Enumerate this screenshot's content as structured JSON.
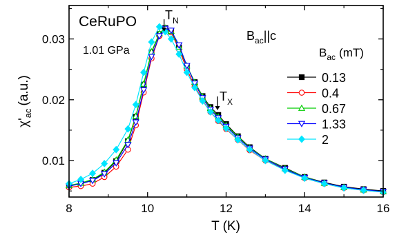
{
  "chart_data": {
    "type": "line",
    "xlabel": "T (K)",
    "ylabel": "χ'ac (a.u.)",
    "ylabel_main": "χ'",
    "ylabel_sub": "ac",
    "ylabel_unit": "(a.u.)",
    "xlim": [
      8,
      16
    ],
    "ylim": [
      0.004,
      0.0355
    ],
    "xticks": [
      8,
      10,
      12,
      14,
      16
    ],
    "yticks": [
      0.01,
      0.02,
      0.03
    ],
    "ytick_labels": [
      "0.01",
      "0.02",
      "0.03"
    ],
    "grid": false,
    "legend_placement": "right",
    "legend_title_main": "B",
    "legend_title_sub": "ac",
    "legend_title_unit": "(mT)",
    "legend_title": "Bac (mT)",
    "annotations": {
      "sample": "CeRuPO",
      "pressure": "1.01 GPa",
      "field_dir_main": "B",
      "field_dir_sub": "ac",
      "field_dir_rest": "||c",
      "tn_main": "T",
      "tn_sub": "N",
      "tx_main": "T",
      "tx_sub": "X",
      "tn_x": 10.42,
      "tx_x": 11.78
    },
    "series": [
      {
        "name": "0.13",
        "color": "#000000",
        "marker": "square-filled",
        "x": [
          8.0,
          8.3,
          8.6,
          8.9,
          9.2,
          9.5,
          9.7,
          9.9,
          10.1,
          10.3,
          10.45,
          10.6,
          10.8,
          11.0,
          11.2,
          11.4,
          11.6,
          11.8,
          12.0,
          12.3,
          12.6,
          13.0,
          13.5,
          14.0,
          14.5,
          15.0,
          15.5,
          16.0
        ],
        "y": [
          0.0058,
          0.0062,
          0.0068,
          0.008,
          0.0099,
          0.0132,
          0.0172,
          0.0225,
          0.0278,
          0.0308,
          0.0318,
          0.0312,
          0.0286,
          0.0255,
          0.0229,
          0.0206,
          0.0188,
          0.0175,
          0.016,
          0.014,
          0.0122,
          0.0103,
          0.0088,
          0.0073,
          0.0064,
          0.0057,
          0.0053,
          0.005
        ]
      },
      {
        "name": "0.4",
        "color": "#ff0000",
        "marker": "circle-open",
        "x": [
          8.0,
          8.3,
          8.6,
          8.9,
          9.2,
          9.5,
          9.7,
          9.9,
          10.1,
          10.3,
          10.45,
          10.6,
          10.8,
          11.0,
          11.2,
          11.4,
          11.6,
          11.8,
          12.0,
          12.3,
          12.6,
          13.0,
          13.5,
          14.0,
          14.5,
          15.0,
          15.5,
          16.0
        ],
        "y": [
          0.0056,
          0.0058,
          0.0062,
          0.0073,
          0.009,
          0.0118,
          0.0158,
          0.0212,
          0.0268,
          0.0305,
          0.0316,
          0.0311,
          0.0283,
          0.025,
          0.0222,
          0.0199,
          0.018,
          0.0165,
          0.0152,
          0.0134,
          0.0117,
          0.01,
          0.0085,
          0.0071,
          0.0062,
          0.0055,
          0.0051,
          0.0048
        ]
      },
      {
        "name": "0.67",
        "color": "#00cc00",
        "marker": "triangle-up-open",
        "x": [
          8.0,
          8.3,
          8.6,
          8.9,
          9.2,
          9.5,
          9.7,
          9.9,
          10.1,
          10.3,
          10.45,
          10.6,
          10.8,
          11.0,
          11.2,
          11.4,
          11.6,
          11.8,
          12.0,
          12.3,
          12.6,
          13.0,
          13.5,
          14.0,
          14.5,
          15.0,
          15.5,
          16.0
        ],
        "y": [
          0.0059,
          0.0063,
          0.0069,
          0.0081,
          0.0101,
          0.0134,
          0.0173,
          0.0226,
          0.0279,
          0.0309,
          0.0318,
          0.0313,
          0.0287,
          0.0256,
          0.0229,
          0.0205,
          0.0186,
          0.0172,
          0.0158,
          0.0139,
          0.0121,
          0.0103,
          0.0087,
          0.0073,
          0.0063,
          0.0056,
          0.0052,
          0.0049
        ]
      },
      {
        "name": "1.33",
        "color": "#0000ff",
        "marker": "triangle-down-open",
        "x": [
          8.0,
          8.3,
          8.6,
          8.9,
          9.2,
          9.5,
          9.7,
          9.9,
          10.1,
          10.3,
          10.45,
          10.6,
          10.8,
          11.0,
          11.2,
          11.4,
          11.6,
          11.8,
          12.0,
          12.3,
          12.6,
          13.0,
          13.5,
          14.0,
          14.5,
          15.0,
          15.5,
          16.0
        ],
        "y": [
          0.0058,
          0.0062,
          0.0067,
          0.0078,
          0.0096,
          0.0126,
          0.0163,
          0.0216,
          0.0271,
          0.0305,
          0.0317,
          0.0314,
          0.029,
          0.0256,
          0.0227,
          0.0203,
          0.0184,
          0.017,
          0.0156,
          0.0137,
          0.012,
          0.0102,
          0.0086,
          0.0072,
          0.0063,
          0.0056,
          0.0052,
          0.0049
        ]
      },
      {
        "name": "2",
        "color": "#00e5ff",
        "marker": "diamond-filled",
        "x": [
          8.0,
          8.3,
          8.6,
          8.9,
          9.2,
          9.5,
          9.7,
          9.9,
          10.1,
          10.3,
          10.45,
          10.6,
          10.8,
          11.0,
          11.2,
          11.4,
          11.6,
          11.8,
          12.0,
          12.3,
          12.6,
          13.0,
          13.5,
          14.0,
          14.5,
          15.0,
          15.5,
          16.0
        ],
        "y": [
          0.0062,
          0.0069,
          0.0079,
          0.0095,
          0.0118,
          0.0152,
          0.0192,
          0.0245,
          0.0295,
          0.032,
          0.0312,
          0.03,
          0.0275,
          0.0245,
          0.022,
          0.0198,
          0.018,
          0.0166,
          0.0153,
          0.0134,
          0.0118,
          0.01,
          0.0084,
          0.0071,
          0.0062,
          0.0055,
          0.0051,
          0.0048
        ]
      }
    ]
  }
}
